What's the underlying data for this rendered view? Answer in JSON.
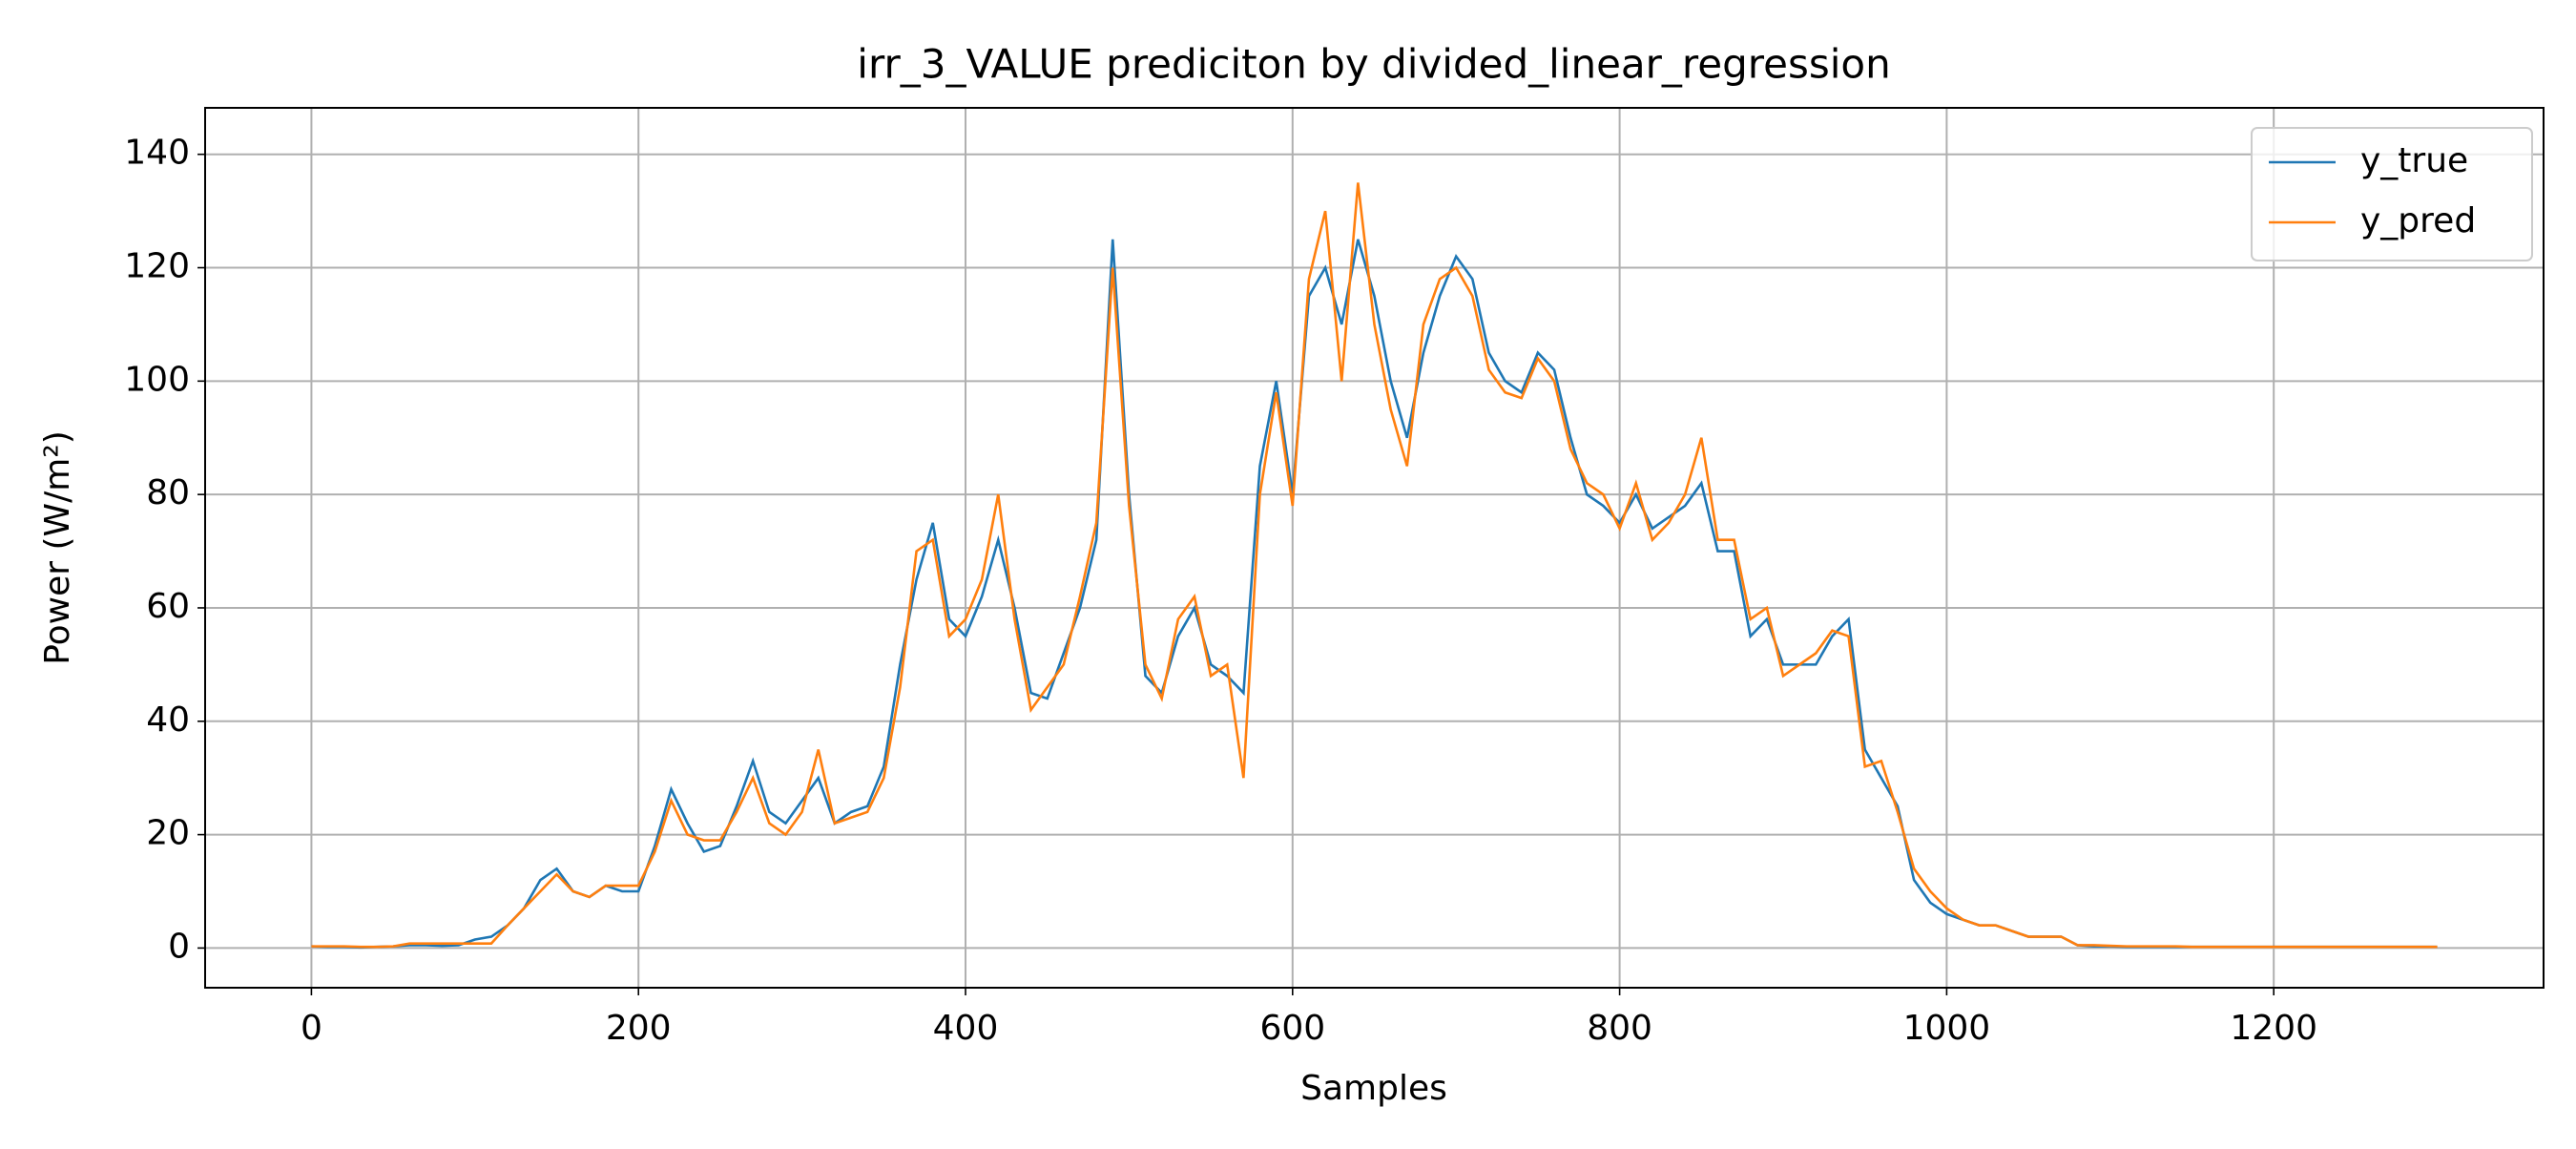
{
  "chart_data": {
    "type": "line",
    "title": "irr_3_VALUE prediciton by divided_linear_regression",
    "x_label": "Samples",
    "y_label": "Power (W/m²)",
    "x": [
      0,
      10,
      20,
      30,
      40,
      50,
      60,
      70,
      80,
      90,
      100,
      110,
      120,
      130,
      140,
      150,
      160,
      170,
      180,
      190,
      200,
      210,
      220,
      230,
      240,
      250,
      260,
      270,
      280,
      290,
      300,
      310,
      320,
      330,
      340,
      350,
      360,
      370,
      380,
      390,
      400,
      410,
      420,
      430,
      440,
      450,
      460,
      470,
      480,
      490,
      500,
      510,
      520,
      530,
      540,
      550,
      560,
      570,
      580,
      590,
      600,
      610,
      620,
      630,
      640,
      650,
      660,
      670,
      680,
      690,
      700,
      710,
      720,
      730,
      740,
      750,
      760,
      770,
      780,
      790,
      800,
      810,
      820,
      830,
      840,
      850,
      860,
      870,
      880,
      890,
      900,
      910,
      920,
      930,
      940,
      950,
      960,
      970,
      980,
      990,
      1000,
      1010,
      1020,
      1030,
      1040,
      1050,
      1060,
      1070,
      1080,
      1090,
      1100,
      1110,
      1120,
      1130,
      1140,
      1150,
      1160,
      1170,
      1180,
      1190,
      1200,
      1210,
      1220,
      1230,
      1240,
      1250,
      1260,
      1270,
      1280,
      1290,
      1300
    ],
    "series": [
      {
        "name": "y_true",
        "color": "#1f77b4",
        "values": [
          0.3,
          0.2,
          0.2,
          0.1,
          0.2,
          0.3,
          0.5,
          0.5,
          0.4,
          0.5,
          1.5,
          2,
          4,
          7,
          12,
          14,
          10,
          9,
          11,
          10,
          10,
          18,
          28,
          22,
          17,
          18,
          25,
          33,
          24,
          22,
          26,
          30,
          22,
          24,
          25,
          32,
          50,
          65,
          75,
          58,
          55,
          62,
          72,
          60,
          45,
          44,
          52,
          60,
          72,
          125,
          80,
          48,
          45,
          55,
          60,
          50,
          48,
          45,
          85,
          100,
          80,
          115,
          120,
          110,
          125,
          115,
          100,
          90,
          105,
          115,
          122,
          118,
          105,
          100,
          98,
          105,
          102,
          90,
          80,
          78,
          75,
          80,
          74,
          76,
          78,
          82,
          70,
          70,
          55,
          58,
          50,
          50,
          50,
          55,
          58,
          35,
          30,
          25,
          12,
          8,
          6,
          5,
          4,
          4,
          3,
          2,
          2,
          2,
          0.5,
          0.3,
          0.3,
          0.2,
          0.2,
          0.2,
          0.2,
          0.2,
          0.2,
          0.2,
          0.2,
          0.2,
          0.2,
          0.2,
          0.2,
          0.2,
          0.2,
          0.2,
          0.2,
          0.2,
          0.2,
          0.2,
          0.2
        ]
      },
      {
        "name": "y_pred",
        "color": "#ff7f0e",
        "values": [
          0.3,
          0.3,
          0.3,
          0.2,
          0.2,
          0.3,
          0.8,
          0.8,
          0.8,
          0.8,
          0.8,
          0.8,
          4,
          7,
          10,
          13,
          10,
          9,
          11,
          11,
          11,
          17,
          26,
          20,
          19,
          19,
          24,
          30,
          22,
          20,
          24,
          35,
          22,
          23,
          24,
          30,
          46,
          70,
          72,
          55,
          58,
          65,
          80,
          58,
          42,
          46,
          50,
          62,
          75,
          120,
          78,
          50,
          44,
          58,
          62,
          48,
          50,
          30,
          80,
          98,
          78,
          118,
          130,
          100,
          135,
          110,
          95,
          85,
          110,
          118,
          120,
          115,
          102,
          98,
          97,
          104,
          100,
          88,
          82,
          80,
          74,
          82,
          72,
          75,
          80,
          90,
          72,
          72,
          58,
          60,
          48,
          50,
          52,
          56,
          55,
          32,
          33,
          24,
          14,
          10,
          7,
          5,
          4,
          4,
          3,
          2,
          2,
          2,
          0.5,
          0.5,
          0.4,
          0.3,
          0.3,
          0.3,
          0.3,
          0.2,
          0.2,
          0.2,
          0.2,
          0.2,
          0.2,
          0.2,
          0.2,
          0.2,
          0.2,
          0.2,
          0.2,
          0.2,
          0.2,
          0.2,
          0.2
        ]
      }
    ],
    "xlim": [
      -65,
      1365
    ],
    "ylim": [
      -7,
      148.2
    ],
    "xticks": [
      0,
      200,
      400,
      600,
      800,
      1000,
      1200
    ],
    "yticks": [
      0,
      20,
      40,
      60,
      80,
      100,
      120,
      140
    ],
    "grid": true,
    "legend": "upper right"
  }
}
